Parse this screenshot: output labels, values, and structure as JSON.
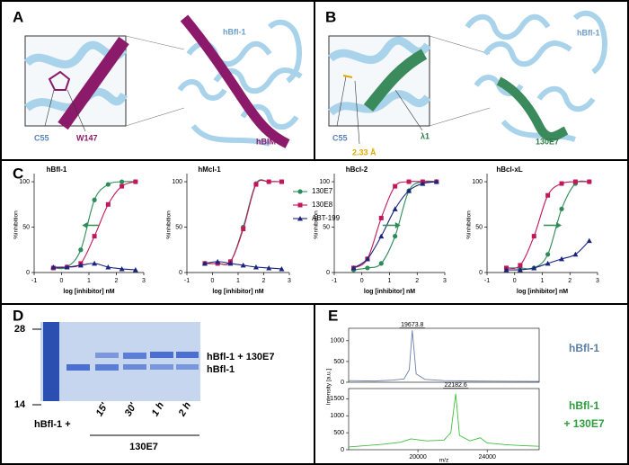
{
  "panels": {
    "A": {
      "label": "A",
      "protein": "hBfl-1",
      "residue1": "C55",
      "residue2": "W147",
      "peptide": "hBIM"
    },
    "B": {
      "label": "B",
      "protein": "hBfl-1",
      "residue1": "C55",
      "residue2": "λ1",
      "distance": "2.33 Å",
      "binder": "130E7"
    },
    "C": {
      "label": "C"
    },
    "D": {
      "label": "D",
      "marker_high": "28",
      "marker_low": "14",
      "band_upper": "hBfl-1 + 130E7",
      "band_lower": "hBfl-1",
      "row_label": "hBfl-1 +",
      "lanes": [
        "15'",
        "30'",
        "1 h",
        "2 h"
      ],
      "group": "130E7"
    },
    "E": {
      "label": "E"
    }
  },
  "chart_data": [
    {
      "type": "scatter",
      "title": "hBfl-1",
      "x_label": "log [inhibitor] nM",
      "y_label": "%inhibition",
      "x": [
        -0.3,
        0.2,
        0.7,
        1.2,
        1.7,
        2.2,
        2.7
      ],
      "xlim": [
        -1,
        3
      ],
      "xticks": [
        -1,
        0,
        1,
        2,
        3
      ],
      "ylim": [
        0,
        105
      ],
      "yticks": [
        0,
        50,
        100
      ],
      "series": [
        {
          "color": "#2e8b57",
          "marker": "circle",
          "values": [
            5,
            6,
            25,
            80,
            97,
            100,
            100
          ]
        },
        {
          "color": "#c2185b",
          "marker": "square",
          "values": [
            5,
            6,
            10,
            40,
            75,
            95,
            100
          ]
        },
        {
          "color": "#1a237e",
          "marker": "triangle",
          "values": [
            6,
            6,
            8,
            10,
            6,
            4,
            3
          ]
        }
      ]
    },
    {
      "type": "scatter",
      "title": "hMcl-1",
      "x_label": "log [inhibitor] nM",
      "y_label": "%inhibition",
      "legend": "right",
      "x": [
        -0.3,
        0.2,
        0.7,
        1.2,
        1.7,
        2.2,
        2.7
      ],
      "xlim": [
        -1,
        3
      ],
      "xticks": [
        -1,
        0,
        1,
        2,
        3
      ],
      "ylim": [
        0,
        105
      ],
      "yticks": [
        0,
        50,
        100
      ],
      "series": [
        {
          "name": "130E7",
          "color": "#2e8b57",
          "marker": "circle",
          "values": [
            10,
            10,
            12,
            50,
            98,
            100,
            100
          ]
        },
        {
          "name": "130E8",
          "color": "#c2185b",
          "marker": "square",
          "values": [
            10,
            10,
            12,
            48,
            97,
            100,
            100
          ]
        },
        {
          "name": "ABT-199",
          "color": "#1a237e",
          "marker": "triangle",
          "values": [
            10,
            12,
            10,
            8,
            6,
            5,
            4
          ]
        }
      ]
    },
    {
      "type": "scatter",
      "title": "hBcl-2",
      "x_label": "log [inhibitor] nM",
      "y_label": "%inhibition",
      "x": [
        -0.3,
        0.2,
        0.7,
        1.2,
        1.7,
        2.2,
        2.7
      ],
      "xlim": [
        -1,
        3
      ],
      "xticks": [
        -1,
        0,
        1,
        2,
        3
      ],
      "ylim": [
        0,
        105
      ],
      "yticks": [
        0,
        50,
        100
      ],
      "series": [
        {
          "color": "#2e8b57",
          "marker": "circle",
          "values": [
            3,
            5,
            10,
            40,
            90,
            100,
            100
          ]
        },
        {
          "color": "#c2185b",
          "marker": "square",
          "values": [
            5,
            15,
            60,
            95,
            100,
            100,
            100
          ]
        },
        {
          "color": "#1a237e",
          "marker": "triangle",
          "values": [
            5,
            15,
            40,
            70,
            90,
            98,
            100
          ]
        }
      ]
    },
    {
      "type": "scatter",
      "title": "hBcl-xL",
      "x_label": "log [inhibitor] nM",
      "y_label": "%inhibition",
      "x": [
        -0.3,
        0.2,
        0.7,
        1.2,
        1.7,
        2.2,
        2.7
      ],
      "xlim": [
        -1,
        3
      ],
      "xticks": [
        -1,
        0,
        1,
        2,
        3
      ],
      "ylim": [
        0,
        105
      ],
      "yticks": [
        0,
        50,
        100
      ],
      "series": [
        {
          "color": "#2e8b57",
          "marker": "circle",
          "values": [
            5,
            5,
            5,
            20,
            70,
            98,
            100
          ]
        },
        {
          "color": "#c2185b",
          "marker": "square",
          "values": [
            5,
            8,
            40,
            85,
            98,
            100,
            100
          ]
        },
        {
          "color": "#1a237e",
          "marker": "triangle",
          "values": [
            3,
            3,
            5,
            10,
            15,
            20,
            35
          ]
        }
      ]
    },
    {
      "type": "line",
      "y_label": "Intensity [a.u.]",
      "side_label": [
        "hBfl-1"
      ],
      "side_color": "#5b7fa6",
      "xlim": [
        16000,
        27000
      ],
      "ylim": [
        0,
        1300
      ],
      "yticks": [
        0,
        500,
        1000
      ],
      "annotations": [
        {
          "text": "19673.8",
          "x": 19673.8
        }
      ],
      "series": [
        {
          "color": "#6b7fa8",
          "x": [
            16000,
            17500,
            18500,
            19200,
            19500,
            19673.8,
            19900,
            20400,
            21500,
            23000,
            24500,
            27000
          ],
          "values": [
            40,
            30,
            50,
            80,
            300,
            1250,
            200,
            70,
            40,
            30,
            25,
            20
          ]
        }
      ]
    },
    {
      "type": "line",
      "x_label": "m/z",
      "side_label": [
        "hBfl-1",
        "+ 130E7"
      ],
      "side_color": "#2e9e3e",
      "xlim": [
        16000,
        27000
      ],
      "xticks": [
        20000,
        24000
      ],
      "ylim": [
        0,
        1800
      ],
      "yticks": [
        0,
        500,
        1000,
        1500
      ],
      "annotations": [
        {
          "text": "22182.6",
          "x": 22182.6
        }
      ],
      "series": [
        {
          "color": "#3fbf3f",
          "x": [
            16000,
            17000,
            18000,
            19000,
            19600,
            20500,
            21500,
            21900,
            22182.6,
            22400,
            23000,
            23600,
            24000,
            25000,
            26000,
            27000
          ],
          "values": [
            80,
            120,
            160,
            220,
            320,
            260,
            280,
            500,
            1650,
            420,
            260,
            350,
            200,
            150,
            120,
            100
          ]
        }
      ]
    }
  ]
}
